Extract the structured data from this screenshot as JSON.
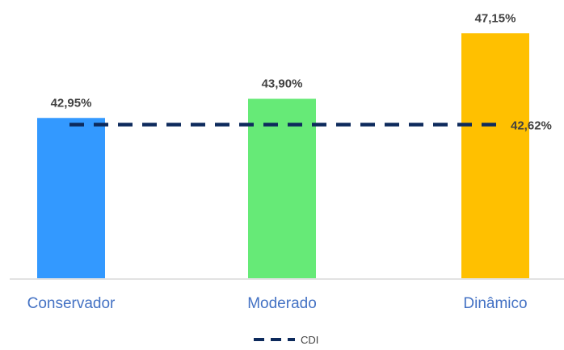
{
  "chart_data": {
    "type": "bar",
    "categories": [
      "Conservador",
      "Moderado",
      "Dinâmico"
    ],
    "values": [
      42.95,
      43.9,
      47.15
    ],
    "value_labels": [
      "42,95%",
      "43,90%",
      "47,15%"
    ],
    "bar_colors": [
      "#3399ff",
      "#66ea77",
      "#ffc000"
    ],
    "category_label_color": "#4472c4",
    "reference_line": {
      "name": "CDI",
      "value": 42.62,
      "label": "42,62%",
      "color": "#0d2a5c",
      "style": "dashed"
    },
    "legend": {
      "placement": "bottom",
      "entries": [
        "CDI"
      ]
    },
    "ylim": [
      35,
      48
    ],
    "grid": false,
    "title": "",
    "xlabel": "",
    "ylabel": ""
  }
}
